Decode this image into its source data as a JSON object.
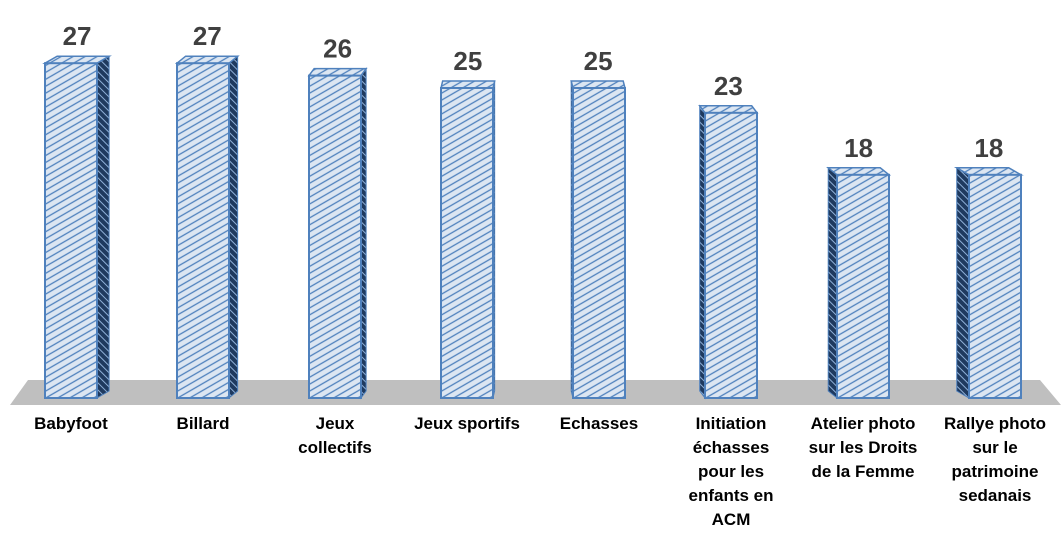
{
  "chart_data": {
    "type": "bar3d",
    "categories": [
      "Babyfoot",
      "Billard",
      "Jeux collectifs",
      "Jeux sportifs",
      "Echasses",
      "Initiation échasses pour les enfants en ACM",
      "Atelier photo sur les Droits de la Femme",
      "Rallye photo sur le patrimoine sedanais"
    ],
    "values": [
      27,
      27,
      26,
      25,
      25,
      23,
      18,
      18
    ],
    "color": "#dce6f2"
  }
}
